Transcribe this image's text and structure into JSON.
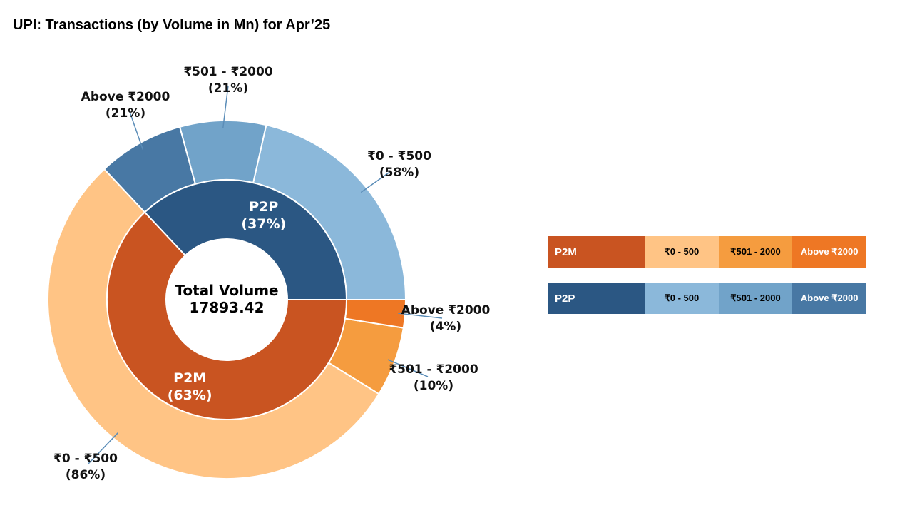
{
  "title": "UPI: Transactions (by Volume in Mn) for Apr’25",
  "center": {
    "line1": "Total Volume",
    "line2": "17893.42"
  },
  "chart_data": {
    "type": "donut",
    "title": "UPI: Transactions (by Volume in Mn) for Apr’25",
    "total_volume": 17893.42,
    "inner": [
      {
        "name": "P2P",
        "label": "P2P",
        "pct_label": "(37%)",
        "value": 37,
        "color": "#2B5783"
      },
      {
        "name": "P2M",
        "label": "P2M",
        "pct_label": "(63%)",
        "value": 63,
        "color": "#C95421"
      }
    ],
    "outer": [
      {
        "group": "P2P",
        "label": "₹0 - ₹500",
        "pct_label": "(58%)",
        "share_of_group": 58,
        "color": "#8BB8DA"
      },
      {
        "group": "P2P",
        "label": "₹501 - ₹2000",
        "pct_label": "(21%)",
        "share_of_group": 21,
        "color": "#71A3C9"
      },
      {
        "group": "P2P",
        "label": "Above ₹2000",
        "pct_label": "(21%)",
        "share_of_group": 21,
        "color": "#4878A4"
      },
      {
        "group": "P2M",
        "label": "₹0 - ₹500",
        "pct_label": "(86%)",
        "share_of_group": 86,
        "color": "#FFC485"
      },
      {
        "group": "P2M",
        "label": "₹501 - ₹2000",
        "pct_label": "(10%)",
        "share_of_group": 10,
        "color": "#F59C3F"
      },
      {
        "group": "P2M",
        "label": "Above ₹2000",
        "pct_label": "(4%)",
        "share_of_group": 4,
        "color": "#EE7724"
      }
    ]
  },
  "legend": [
    {
      "name": "P2M",
      "color": "#C95421",
      "cells": [
        {
          "label": "₹0 - 500",
          "color": "#FFC485",
          "light": false
        },
        {
          "label": "₹501 - 2000",
          "color": "#F59C3F",
          "light": false
        },
        {
          "label": "Above ₹2000",
          "color": "#EE7724",
          "light": true
        }
      ]
    },
    {
      "name": "P2P",
      "color": "#2B5783",
      "cells": [
        {
          "label": "₹0 - 500",
          "color": "#8BB8DA",
          "light": false
        },
        {
          "label": "₹501 - 2000",
          "color": "#71A3C9",
          "light": false
        },
        {
          "label": "Above ₹2000",
          "color": "#4878A4",
          "light": true
        }
      ]
    }
  ]
}
